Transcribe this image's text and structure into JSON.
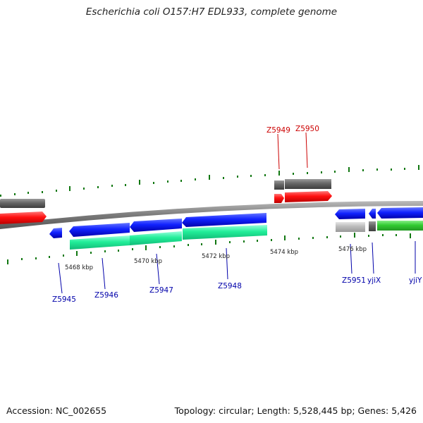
{
  "title": "Escherichia coli O157:H7 EDL933, complete genome",
  "footer": {
    "accession": "Accession: NC_002655",
    "topology": "Topology: circular; Length: 5,528,445 bp; Genes: 5,426"
  },
  "colors": {
    "forward_label": "#cc0000",
    "reverse_label": "#0000aa",
    "forward_cds": "#ff0000",
    "reverse_cds": "#0000ff",
    "gene_gray": "#666666",
    "rna_green": "#11dd99",
    "cds_green": "#33cc33",
    "pseudo_gray": "#bbbbbb",
    "tick_green": "#117711",
    "backbone": "#888888"
  },
  "scale_labels": [
    "5468 kbp",
    "5470 kbp",
    "5472 kbp",
    "5474 kbp",
    "5476 kbp"
  ],
  "gene_labels": {
    "forward": [
      "Z5949",
      "Z5950"
    ],
    "reverse": [
      "Z5945",
      "Z5946",
      "Z5947",
      "Z5948",
      "Z5951",
      "yjiX",
      "yjiY"
    ]
  }
}
